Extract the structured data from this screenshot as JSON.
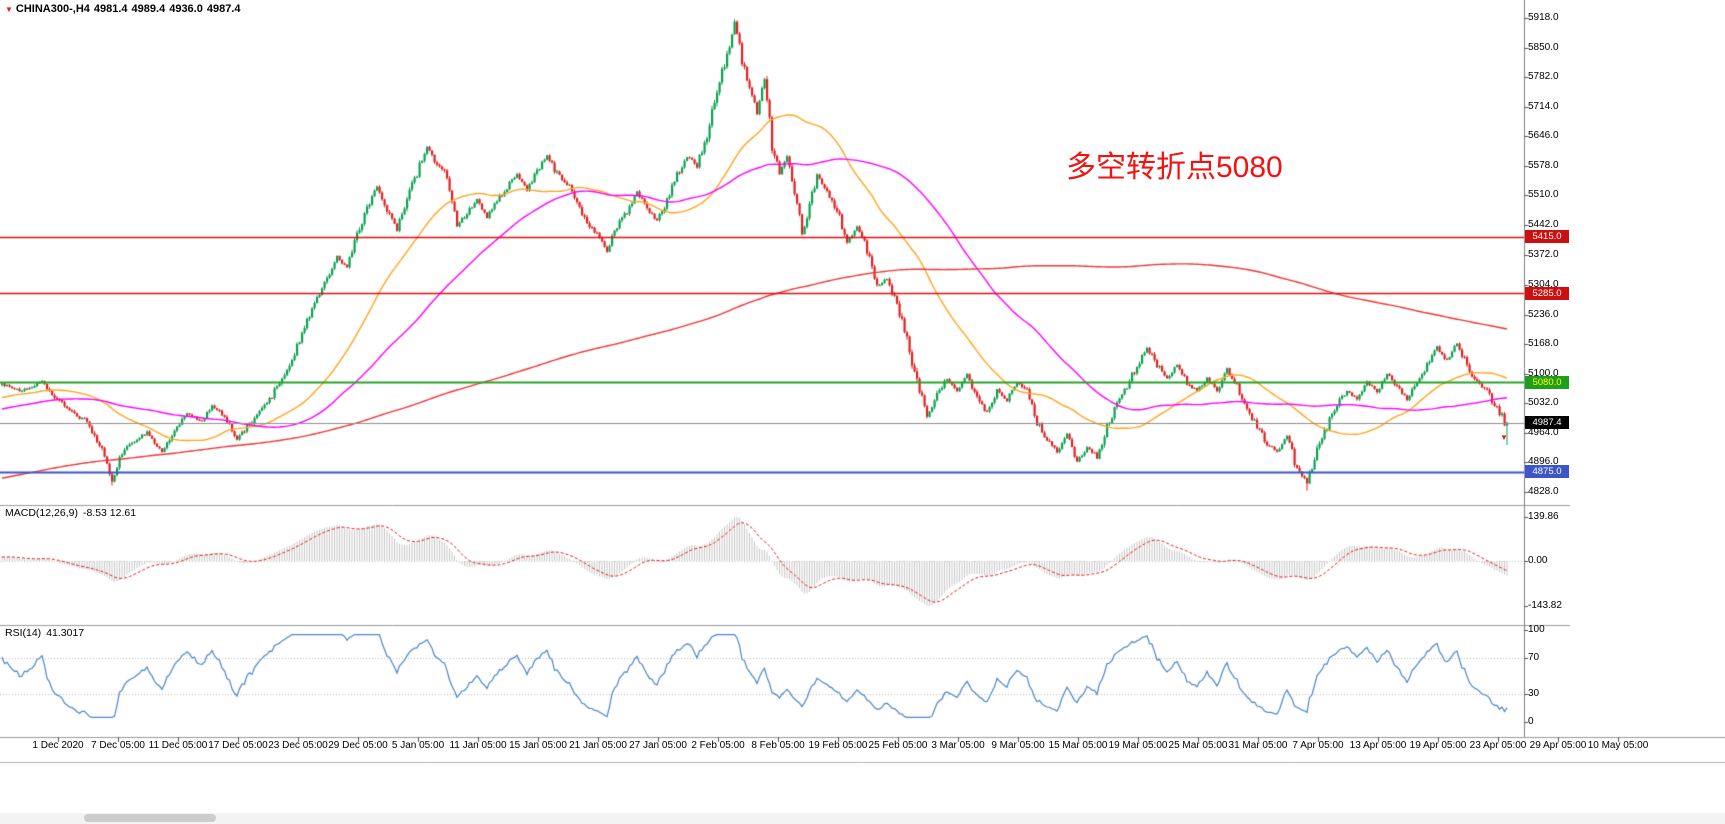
{
  "header": {
    "marker": "▼",
    "symbol": "CHINA300-,H4",
    "open": "4981.4",
    "high": "4989.4",
    "low": "4936.0",
    "close": "4987.4"
  },
  "annotation": {
    "text": "多空转折点5080",
    "color": "#f31212"
  },
  "chart_data": {
    "type": "candlestick",
    "title": "CHINA300- H4",
    "symbol": "CHINA300-",
    "timeframe": "H4",
    "ohlc_display": {
      "open": "4981.4",
      "high": "4989.4",
      "low": "4936.0",
      "close": "4987.4"
    },
    "price_axis_ticks": [
      "5918.0",
      "5850.0",
      "5782.0",
      "5714.0",
      "5646.0",
      "5578.0",
      "5510.0",
      "5442.0",
      "5372.0",
      "5304.0",
      "5236.0",
      "5168.0",
      "5100.0",
      "5032.0",
      "4964.0",
      "4896.0",
      "4828.0"
    ],
    "time_axis_ticks": [
      "1 Dec 2020",
      "7 Dec 05:00",
      "11 Dec 05:00",
      "17 Dec 05:00",
      "23 Dec 05:00",
      "29 Dec 05:00",
      "5 Jan 05:00",
      "11 Jan 05:00",
      "15 Jan 05:00",
      "21 Jan 05:00",
      "27 Jan 05:00",
      "2 Feb 05:00",
      "8 Feb 05:00",
      "19 Feb 05:00",
      "25 Feb 05:00",
      "3 Mar 05:00",
      "9 Mar 05:00",
      "15 Mar 05:00",
      "19 Mar 05:00",
      "25 Mar 05:00",
      "31 Mar 05:00",
      "7 Apr 05:00",
      "13 Apr 05:00",
      "19 Apr 05:00",
      "23 Apr 05:00",
      "29 Apr 05:00",
      "10 May 05:00"
    ],
    "bars_total": 603,
    "price_path_anchors": [
      [
        0,
        5075
      ],
      [
        8,
        5060
      ],
      [
        16,
        5085
      ],
      [
        22,
        5040
      ],
      [
        28,
        5010
      ],
      [
        34,
        4990
      ],
      [
        40,
        4930
      ],
      [
        44,
        4855
      ],
      [
        47,
        4900
      ],
      [
        52,
        4945
      ],
      [
        58,
        4965
      ],
      [
        64,
        4920
      ],
      [
        68,
        4960
      ],
      [
        74,
        5010
      ],
      [
        80,
        4990
      ],
      [
        84,
        5030
      ],
      [
        90,
        4990
      ],
      [
        94,
        4950
      ],
      [
        100,
        4990
      ],
      [
        106,
        5030
      ],
      [
        112,
        5090
      ],
      [
        118,
        5160
      ],
      [
        124,
        5250
      ],
      [
        128,
        5300
      ],
      [
        134,
        5370
      ],
      [
        138,
        5340
      ],
      [
        142,
        5420
      ],
      [
        146,
        5480
      ],
      [
        150,
        5530
      ],
      [
        154,
        5480
      ],
      [
        158,
        5430
      ],
      [
        162,
        5510
      ],
      [
        166,
        5560
      ],
      [
        170,
        5620
      ],
      [
        174,
        5580
      ],
      [
        178,
        5550
      ],
      [
        182,
        5440
      ],
      [
        186,
        5470
      ],
      [
        190,
        5500
      ],
      [
        194,
        5460
      ],
      [
        198,
        5500
      ],
      [
        202,
        5530
      ],
      [
        206,
        5560
      ],
      [
        210,
        5520
      ],
      [
        214,
        5570
      ],
      [
        218,
        5600
      ],
      [
        222,
        5560
      ],
      [
        226,
        5540
      ],
      [
        230,
        5500
      ],
      [
        234,
        5440
      ],
      [
        238,
        5420
      ],
      [
        242,
        5380
      ],
      [
        246,
        5440
      ],
      [
        250,
        5470
      ],
      [
        254,
        5520
      ],
      [
        258,
        5480
      ],
      [
        262,
        5450
      ],
      [
        266,
        5500
      ],
      [
        270,
        5560
      ],
      [
        274,
        5600
      ],
      [
        278,
        5580
      ],
      [
        282,
        5650
      ],
      [
        286,
        5750
      ],
      [
        290,
        5830
      ],
      [
        293,
        5910
      ],
      [
        296,
        5820
      ],
      [
        299,
        5760
      ],
      [
        302,
        5700
      ],
      [
        305,
        5780
      ],
      [
        308,
        5620
      ],
      [
        311,
        5560
      ],
      [
        314,
        5600
      ],
      [
        317,
        5530
      ],
      [
        320,
        5420
      ],
      [
        323,
        5480
      ],
      [
        326,
        5560
      ],
      [
        330,
        5520
      ],
      [
        334,
        5480
      ],
      [
        338,
        5400
      ],
      [
        342,
        5440
      ],
      [
        346,
        5380
      ],
      [
        350,
        5300
      ],
      [
        354,
        5320
      ],
      [
        358,
        5260
      ],
      [
        362,
        5180
      ],
      [
        366,
        5080
      ],
      [
        370,
        5000
      ],
      [
        374,
        5050
      ],
      [
        378,
        5090
      ],
      [
        382,
        5060
      ],
      [
        386,
        5100
      ],
      [
        390,
        5040
      ],
      [
        394,
        5010
      ],
      [
        398,
        5060
      ],
      [
        402,
        5040
      ],
      [
        406,
        5080
      ],
      [
        410,
        5060
      ],
      [
        414,
        4990
      ],
      [
        418,
        4950
      ],
      [
        422,
        4920
      ],
      [
        426,
        4960
      ],
      [
        430,
        4900
      ],
      [
        434,
        4930
      ],
      [
        438,
        4910
      ],
      [
        442,
        4980
      ],
      [
        446,
        5030
      ],
      [
        450,
        5070
      ],
      [
        454,
        5120
      ],
      [
        458,
        5160
      ],
      [
        462,
        5120
      ],
      [
        466,
        5090
      ],
      [
        470,
        5120
      ],
      [
        474,
        5080
      ],
      [
        478,
        5060
      ],
      [
        482,
        5090
      ],
      [
        486,
        5060
      ],
      [
        490,
        5110
      ],
      [
        494,
        5070
      ],
      [
        498,
        5020
      ],
      [
        502,
        4980
      ],
      [
        506,
        4940
      ],
      [
        510,
        4920
      ],
      [
        514,
        4960
      ],
      [
        518,
        4880
      ],
      [
        522,
        4850
      ],
      [
        526,
        4930
      ],
      [
        530,
        4980
      ],
      [
        534,
        5030
      ],
      [
        538,
        5060
      ],
      [
        542,
        5040
      ],
      [
        546,
        5080
      ],
      [
        550,
        5060
      ],
      [
        554,
        5100
      ],
      [
        558,
        5070
      ],
      [
        562,
        5040
      ],
      [
        566,
        5080
      ],
      [
        570,
        5120
      ],
      [
        574,
        5160
      ],
      [
        578,
        5130
      ],
      [
        582,
        5170
      ],
      [
        586,
        5120
      ],
      [
        590,
        5080
      ],
      [
        594,
        5060
      ],
      [
        598,
        5020
      ],
      [
        602,
        4987
      ]
    ],
    "candle_colors": {
      "up": "#0aa14e",
      "down": "#e02020"
    },
    "moving_averages": [
      {
        "name": "fast-ma",
        "period": 45,
        "color": "#ffa520"
      },
      {
        "name": "medium-ma",
        "period": 90,
        "color": "#ff00ff"
      },
      {
        "name": "slow-ma",
        "period": 360,
        "color": "#ee3838"
      }
    ],
    "horizontal_levels": [
      {
        "price": 5415.0,
        "label": "5415.0",
        "color": "#e01010",
        "line_width": 1.4,
        "label_bg": "#cc1010",
        "label_fg": "#ffffff"
      },
      {
        "price": 5285.0,
        "label": "5285.0",
        "color": "#e01010",
        "line_width": 1.4,
        "label_bg": "#cc1010",
        "label_fg": "#ffffff"
      },
      {
        "price": 5080.0,
        "label": "5080.0",
        "color": "#28a428",
        "line_width": 2,
        "label_bg": "#1e9e1e",
        "label_fg": "#ffff00"
      },
      {
        "price": 4875.0,
        "label": "4875.0",
        "color": "#3c55c8",
        "line_width": 2,
        "label_bg": "#3c55c8",
        "label_fg": "#ffffff"
      }
    ],
    "current_price": {
      "value": 4987.4,
      "label": "4987.4",
      "line_color": "#909090",
      "label_bg": "#000000",
      "label_fg": "#ffffff"
    },
    "indicators": {
      "macd": {
        "label": "MACD(12,26,9)",
        "values_text": "-8.53 12.61",
        "axis": [
          "139.86",
          "0.00",
          "-143.82"
        ],
        "histogram_color": "#c8c8c8",
        "signal_color": "#e02020"
      },
      "rsi": {
        "label": "RSI(14)",
        "value_text": "41.3017",
        "axis": [
          "100",
          "70",
          "30",
          "0"
        ],
        "levels": [
          70,
          30
        ],
        "line_color": "#4a86c8"
      }
    }
  }
}
